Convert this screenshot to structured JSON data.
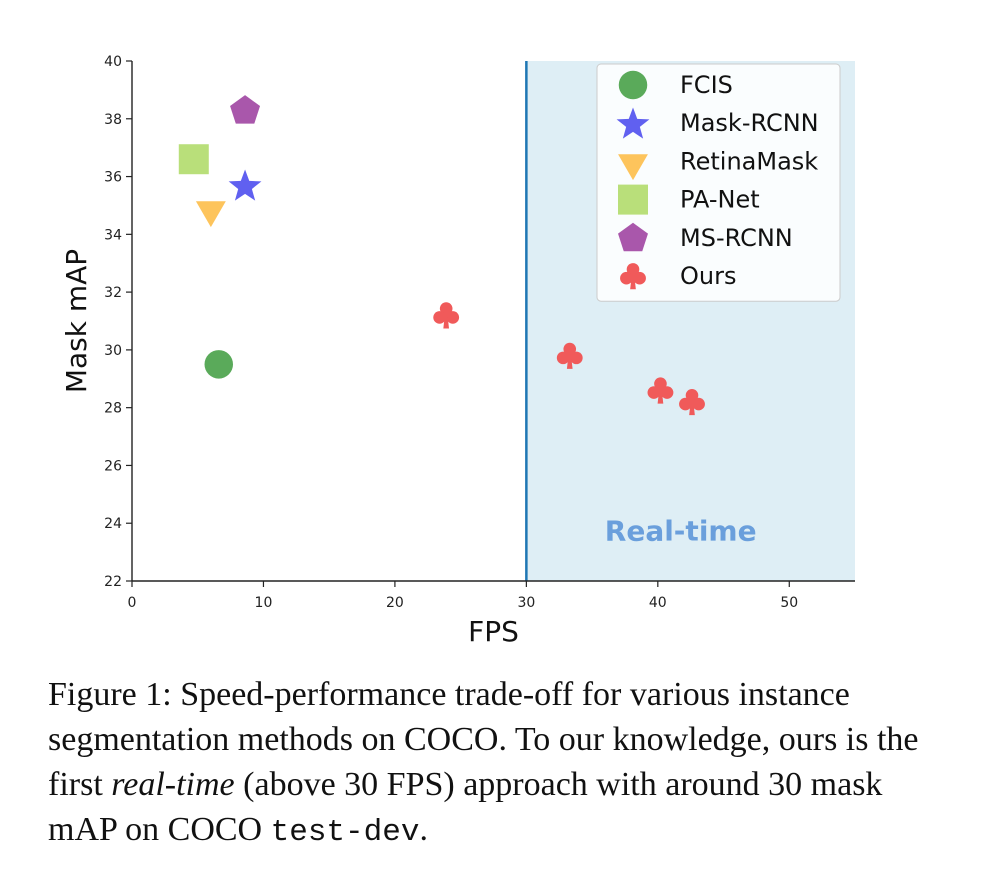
{
  "chart_data": {
    "type": "scatter",
    "xlabel": "FPS",
    "ylabel": "Mask mAP",
    "xlim": [
      0,
      55
    ],
    "ylim": [
      22,
      40
    ],
    "xticks": [
      0,
      10,
      20,
      30,
      40,
      50
    ],
    "yticks": [
      22,
      24,
      26,
      28,
      30,
      32,
      34,
      36,
      38,
      40
    ],
    "grid": false,
    "legend_position": "top-right",
    "region": {
      "label": "Real-time",
      "x_start": 30,
      "x_end": 55,
      "color": "#deeef5",
      "line_color": "#1f77b4",
      "label_color": "#6a9fdc"
    },
    "series": [
      {
        "name": "FCIS",
        "marker": "circle",
        "color": "#5aaa5a",
        "points": [
          [
            6.6,
            29.5
          ]
        ]
      },
      {
        "name": "Mask-RCNN",
        "marker": "star",
        "color": "#6060f0",
        "points": [
          [
            8.6,
            35.7
          ]
        ]
      },
      {
        "name": "RetinaMask",
        "marker": "triangle-down",
        "color": "#fdc45c",
        "points": [
          [
            6.0,
            34.9
          ]
        ]
      },
      {
        "name": "PA-Net",
        "marker": "square",
        "color": "#b9df7a",
        "points": [
          [
            4.7,
            36.6
          ]
        ]
      },
      {
        "name": "MS-RCNN",
        "marker": "pentagon",
        "color": "#a957ab",
        "points": [
          [
            8.6,
            38.3
          ]
        ]
      },
      {
        "name": "Ours",
        "marker": "club",
        "color": "#f05a5a",
        "points": [
          [
            23.9,
            31.2
          ],
          [
            33.3,
            29.8
          ],
          [
            40.2,
            28.6
          ],
          [
            42.6,
            28.2
          ]
        ]
      }
    ]
  },
  "caption": {
    "part1": "Figure 1: Speed-performance trade-off for various instance segmentation methods on COCO. To our knowledge, ours is the first ",
    "italic": "real-time",
    "part2": " (above 30 FPS) approach with around 30 mask mAP on COCO ",
    "code": "test-dev",
    "part3": "."
  }
}
